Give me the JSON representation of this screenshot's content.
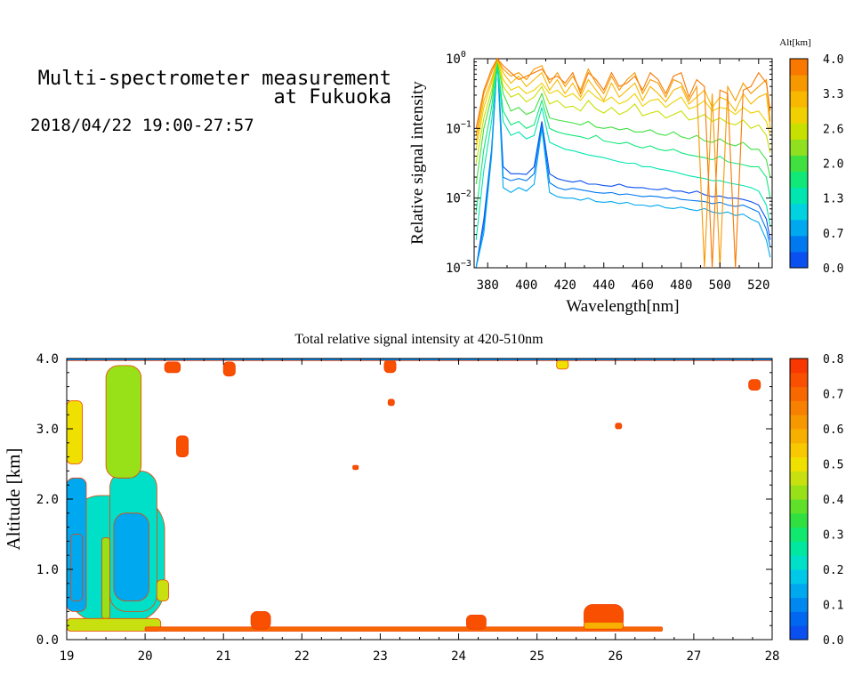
{
  "header": {
    "title_line1": "Multi-spectrometer measurement",
    "title_line2": "at Fukuoka",
    "date_range": "2018/04/22 19:00-27:57"
  },
  "chart_data": [
    {
      "type": "line",
      "xlabel": "Wavelength[nm]",
      "ylabel": "Relative signal intensity",
      "xlim": [
        373,
        527
      ],
      "ylim_log10": [
        -3,
        0
      ],
      "y_scale": "log",
      "grid": false,
      "x_ticks": [
        380,
        400,
        420,
        440,
        460,
        480,
        500,
        520
      ],
      "y_ticks": [
        {
          "base": "10",
          "exp": "0",
          "log10": 0
        },
        {
          "base": "10",
          "exp": "−1",
          "log10": -1
        },
        {
          "base": "10",
          "exp": "−2",
          "log10": -2
        },
        {
          "base": "10",
          "exp": "−3",
          "log10": -3
        }
      ],
      "colorbar": {
        "label": "Alt[km]",
        "ticks": [
          "4.0",
          "3.3",
          "2.6",
          "2.0",
          "1.3",
          "0.7",
          "0.0"
        ],
        "range": [
          0,
          4
        ],
        "colors": [
          "#0a50f0",
          "#0078f0",
          "#00a8f0",
          "#00d2e0",
          "#00e6b0",
          "#10e878",
          "#40e040",
          "#90e020",
          "#c8e000",
          "#f0d000",
          "#f8b800",
          "#f89800",
          "#f87800"
        ]
      },
      "x": [
        374,
        378,
        382,
        385,
        388,
        392,
        396,
        400,
        404,
        408,
        412,
        416,
        420,
        424,
        428,
        432,
        436,
        440,
        444,
        448,
        452,
        456,
        460,
        464,
        468,
        472,
        476,
        480,
        484,
        488,
        492,
        496,
        500,
        504,
        508,
        512,
        516,
        520,
        524,
        526
      ],
      "series": [
        {
          "alt": 0.1,
          "log10": [
            -3.0,
            -2.3,
            -1.3,
            0.0,
            -1.55,
            -1.65,
            -1.65,
            -1.66,
            -1.55,
            -0.9,
            -1.65,
            -1.72,
            -1.75,
            -1.77,
            -1.75,
            -1.8,
            -1.8,
            -1.82,
            -1.83,
            -1.8,
            -1.84,
            -1.85,
            -1.85,
            -1.87,
            -1.88,
            -1.86,
            -1.9,
            -1.9,
            -1.93,
            -1.9,
            -1.95,
            -1.98,
            -1.97,
            -2.0,
            -2.0,
            -2.02,
            -2.05,
            -2.1,
            -2.3,
            -2.6
          ]
        },
        {
          "alt": 0.4,
          "log10": [
            -3.0,
            -2.4,
            -1.35,
            0.0,
            -1.7,
            -1.75,
            -1.72,
            -1.75,
            -1.65,
            -0.95,
            -1.78,
            -1.85,
            -1.88,
            -1.86,
            -1.88,
            -1.9,
            -1.92,
            -1.93,
            -1.92,
            -1.95,
            -1.94,
            -1.96,
            -1.98,
            -1.97,
            -1.98,
            -2.0,
            -1.99,
            -2.02,
            -2.03,
            -2.04,
            -2.05,
            -2.08,
            -2.06,
            -2.1,
            -2.12,
            -2.1,
            -2.15,
            -2.2,
            -2.45,
            -2.7
          ]
        },
        {
          "alt": 0.8,
          "log10": [
            -3.0,
            -2.5,
            -1.4,
            0.0,
            -1.85,
            -1.92,
            -1.85,
            -1.9,
            -1.8,
            -1.0,
            -1.92,
            -1.98,
            -2.0,
            -2.0,
            -2.03,
            -2.0,
            -2.05,
            -2.06,
            -2.05,
            -2.08,
            -2.06,
            -2.1,
            -2.1,
            -2.12,
            -2.1,
            -2.14,
            -2.15,
            -2.13,
            -2.16,
            -2.18,
            -2.15,
            -2.2,
            -2.22,
            -2.2,
            -2.25,
            -2.23,
            -2.3,
            -2.35,
            -2.6,
            -2.85
          ]
        },
        {
          "alt": 1.3,
          "log10": [
            -2.6,
            -1.6,
            -0.9,
            -0.1,
            -0.9,
            -1.1,
            -1.05,
            -1.15,
            -1.1,
            -0.7,
            -1.2,
            -1.25,
            -1.3,
            -1.32,
            -1.35,
            -1.38,
            -1.4,
            -1.42,
            -1.45,
            -1.48,
            -1.5,
            -1.5,
            -1.55,
            -1.55,
            -1.58,
            -1.6,
            -1.62,
            -1.65,
            -1.68,
            -1.7,
            -1.72,
            -1.75,
            -1.75,
            -1.78,
            -1.8,
            -1.82,
            -1.85,
            -1.9,
            -2.1,
            -2.4
          ]
        },
        {
          "alt": 1.7,
          "log10": [
            -2.2,
            -1.3,
            -0.7,
            -0.05,
            -0.75,
            -0.95,
            -0.9,
            -1.0,
            -0.95,
            -0.6,
            -1.0,
            -1.05,
            -1.08,
            -1.1,
            -1.12,
            -1.15,
            -1.1,
            -1.18,
            -1.2,
            -1.22,
            -1.2,
            -1.25,
            -1.28,
            -1.25,
            -1.3,
            -1.32,
            -1.3,
            -1.35,
            -1.38,
            -1.4,
            -1.42,
            -1.45,
            -1.4,
            -1.48,
            -1.5,
            -1.52,
            -1.55,
            -1.55,
            -1.7,
            -2.0
          ]
        },
        {
          "alt": 2.1,
          "log10": [
            -1.8,
            -1.0,
            -0.55,
            0.0,
            -0.5,
            -0.75,
            -0.7,
            -0.8,
            -0.75,
            -0.5,
            -0.85,
            -0.88,
            -0.9,
            -0.92,
            -0.95,
            -0.9,
            -0.98,
            -1.0,
            -0.98,
            -1.02,
            -1.0,
            -1.05,
            -1.05,
            -1.02,
            -1.08,
            -1.1,
            -1.05,
            -1.12,
            -1.15,
            -1.1,
            -1.18,
            -1.2,
            -1.15,
            -1.22,
            -1.25,
            -1.2,
            -1.3,
            -1.3,
            -1.45,
            -1.7
          ]
        },
        {
          "alt": 2.5,
          "log10": [
            -1.5,
            -0.85,
            -0.45,
            0.0,
            -0.4,
            -0.55,
            -0.5,
            -0.62,
            -0.55,
            -0.4,
            -0.65,
            -0.6,
            -0.7,
            -0.68,
            -0.75,
            -0.6,
            -0.72,
            -0.78,
            -0.7,
            -0.8,
            -0.75,
            -0.65,
            -0.82,
            -0.78,
            -0.75,
            -0.85,
            -0.8,
            -0.75,
            -0.88,
            -0.85,
            -0.8,
            -0.9,
            -0.85,
            -0.92,
            -0.95,
            -0.88,
            -1.0,
            -0.95,
            -1.1,
            -1.35
          ]
        },
        {
          "alt": 2.9,
          "log10": [
            -1.3,
            -0.7,
            -0.35,
            0.0,
            -0.3,
            -0.45,
            -0.4,
            -0.5,
            -0.45,
            -0.35,
            -0.5,
            -0.45,
            -0.55,
            -0.5,
            -0.6,
            -0.45,
            -0.55,
            -0.62,
            -0.55,
            -0.65,
            -0.6,
            -0.5,
            -0.68,
            -0.6,
            -0.58,
            -0.7,
            -0.62,
            -0.55,
            -0.72,
            -0.68,
            -0.6,
            -0.75,
            -0.7,
            -0.72,
            -0.8,
            -0.7,
            -0.78,
            -0.75,
            -0.9,
            -1.1
          ]
        },
        {
          "alt": 3.2,
          "log10": [
            -1.2,
            -0.6,
            -0.3,
            0.0,
            -0.2,
            -0.35,
            -0.25,
            -0.4,
            -0.3,
            -0.2,
            -0.45,
            -0.3,
            -0.5,
            -0.35,
            -0.55,
            -0.3,
            -0.45,
            -0.6,
            -0.35,
            -0.55,
            -0.45,
            -0.35,
            -0.6,
            -0.4,
            -0.5,
            -0.62,
            -0.45,
            -0.4,
            -0.65,
            -0.55,
            -0.45,
            -0.7,
            -0.55,
            -0.6,
            -0.75,
            -0.5,
            -0.65,
            -0.55,
            -0.5,
            -1.0
          ]
        },
        {
          "alt": 3.5,
          "log10": [
            -1.1,
            -0.5,
            -0.2,
            0.0,
            -0.15,
            -0.25,
            -0.2,
            -0.3,
            -0.15,
            -0.1,
            -0.35,
            -0.2,
            -0.4,
            -0.25,
            -0.45,
            -0.15,
            -0.35,
            -0.5,
            -0.25,
            -0.45,
            -0.3,
            -0.2,
            -0.5,
            -0.3,
            -0.35,
            -0.55,
            -0.3,
            -0.35,
            -0.6,
            -0.4,
            -3.0,
            -0.5,
            -3.0,
            -0.4,
            -0.6,
            -0.35,
            -0.5,
            -0.4,
            -0.3,
            -0.9
          ]
        },
        {
          "alt": 3.8,
          "log10": [
            -1.0,
            -0.45,
            -0.15,
            0.0,
            -0.1,
            -0.2,
            -0.3,
            -0.25,
            -0.2,
            -0.15,
            -0.3,
            -0.25,
            -0.35,
            -0.2,
            -0.5,
            -0.2,
            -0.3,
            -0.45,
            -0.2,
            -0.4,
            -0.35,
            -0.25,
            -0.45,
            -0.2,
            -0.3,
            -0.5,
            -0.25,
            -0.2,
            -0.55,
            -0.3,
            -0.4,
            -3.0,
            -0.45,
            -0.5,
            -3.0,
            -0.45,
            -0.4,
            -0.2,
            -0.35,
            -0.75
          ]
        }
      ]
    },
    {
      "type": "heatmap",
      "title": "Total relative signal intensity at 420-510nm",
      "xlabel": "",
      "ylabel": "Altitude [km]",
      "xlim": [
        19,
        28
      ],
      "ylim": [
        0,
        4
      ],
      "grid": false,
      "x_ticks": [
        "19",
        "20",
        "21",
        "22",
        "23",
        "24",
        "25",
        "26",
        "27",
        "28"
      ],
      "y_ticks": [
        "0.0",
        "1.0",
        "2.0",
        "3.0",
        "4.0"
      ],
      "colorbar": {
        "range": [
          0,
          0.8
        ],
        "ticks": [
          "0.8",
          "0.7",
          "0.6",
          "0.5",
          "0.4",
          "0.3",
          "0.2",
          "0.1",
          "0.0"
        ],
        "colors": [
          "#0a50f0",
          "#0068f0",
          "#0088f0",
          "#00a8f0",
          "#00c8e8",
          "#00e0c8",
          "#00e8a0",
          "#10e870",
          "#30e040",
          "#60e028",
          "#98e018",
          "#c8e010",
          "#f0e000",
          "#f8c800",
          "#f8b000",
          "#f89800",
          "#f88000",
          "#f86800",
          "#f85000",
          "#f83800"
        ]
      },
      "cells": [
        {
          "t0": 19.0,
          "t1": 20.25,
          "h0": 0.25,
          "h1": 2.05,
          "v": 0.2
        },
        {
          "t0": 19.0,
          "t1": 19.25,
          "h0": 0.4,
          "h1": 2.3,
          "v": 0.15
        },
        {
          "t0": 19.05,
          "t1": 19.2,
          "h0": 0.55,
          "h1": 1.5,
          "v": 0.12
        },
        {
          "t0": 19.55,
          "t1": 20.15,
          "h0": 0.4,
          "h1": 2.4,
          "v": 0.2
        },
        {
          "t0": 19.6,
          "t1": 20.05,
          "h0": 0.55,
          "h1": 1.8,
          "v": 0.15
        },
        {
          "t0": 19.45,
          "t1": 19.55,
          "h0": 0.3,
          "h1": 1.45,
          "v": 0.4
        },
        {
          "t0": 19.5,
          "t1": 19.95,
          "h0": 2.3,
          "h1": 3.9,
          "v": 0.4
        },
        {
          "t0": 19.0,
          "t1": 19.2,
          "h0": 2.5,
          "h1": 3.4,
          "v": 0.5
        },
        {
          "t0": 20.15,
          "t1": 20.3,
          "h0": 0.55,
          "h1": 0.85,
          "v": 0.45
        },
        {
          "t0": 19.0,
          "t1": 20.2,
          "h0": 0.12,
          "h1": 0.3,
          "v": 0.45
        },
        {
          "t0": 20.0,
          "t1": 26.6,
          "h0": 0.12,
          "h1": 0.18,
          "v": 0.7
        },
        {
          "t0": 21.35,
          "t1": 21.6,
          "h0": 0.15,
          "h1": 0.4,
          "v": 0.72
        },
        {
          "t0": 24.1,
          "t1": 24.35,
          "h0": 0.15,
          "h1": 0.35,
          "v": 0.72
        },
        {
          "t0": 25.6,
          "t1": 26.1,
          "h0": 0.15,
          "h1": 0.5,
          "v": 0.72
        },
        {
          "t0": 25.6,
          "t1": 26.1,
          "h0": 0.15,
          "h1": 0.25,
          "v": 0.6
        },
        {
          "t0": 20.4,
          "t1": 20.55,
          "h0": 2.6,
          "h1": 2.9,
          "v": 0.75
        },
        {
          "t0": 20.25,
          "t1": 20.45,
          "h0": 3.8,
          "h1": 3.95,
          "v": 0.75
        },
        {
          "t0": 21.0,
          "t1": 21.15,
          "h0": 3.75,
          "h1": 3.95,
          "v": 0.75
        },
        {
          "t0": 23.05,
          "t1": 23.2,
          "h0": 3.8,
          "h1": 3.98,
          "v": 0.75
        },
        {
          "t0": 25.25,
          "t1": 25.4,
          "h0": 3.85,
          "h1": 3.98,
          "v": 0.5
        },
        {
          "t0": 27.7,
          "t1": 27.85,
          "h0": 3.55,
          "h1": 3.7,
          "v": 0.75
        },
        {
          "t0": 26.0,
          "t1": 26.08,
          "h0": 3.0,
          "h1": 3.08,
          "v": 0.75
        },
        {
          "t0": 23.1,
          "t1": 23.18,
          "h0": 3.33,
          "h1": 3.42,
          "v": 0.75
        },
        {
          "t0": 22.65,
          "t1": 22.72,
          "h0": 2.42,
          "h1": 2.48,
          "v": 0.75
        },
        {
          "t0": 19.0,
          "t1": 28.0,
          "h0": 3.97,
          "h1": 4.0,
          "v": 0.1
        }
      ]
    }
  ]
}
